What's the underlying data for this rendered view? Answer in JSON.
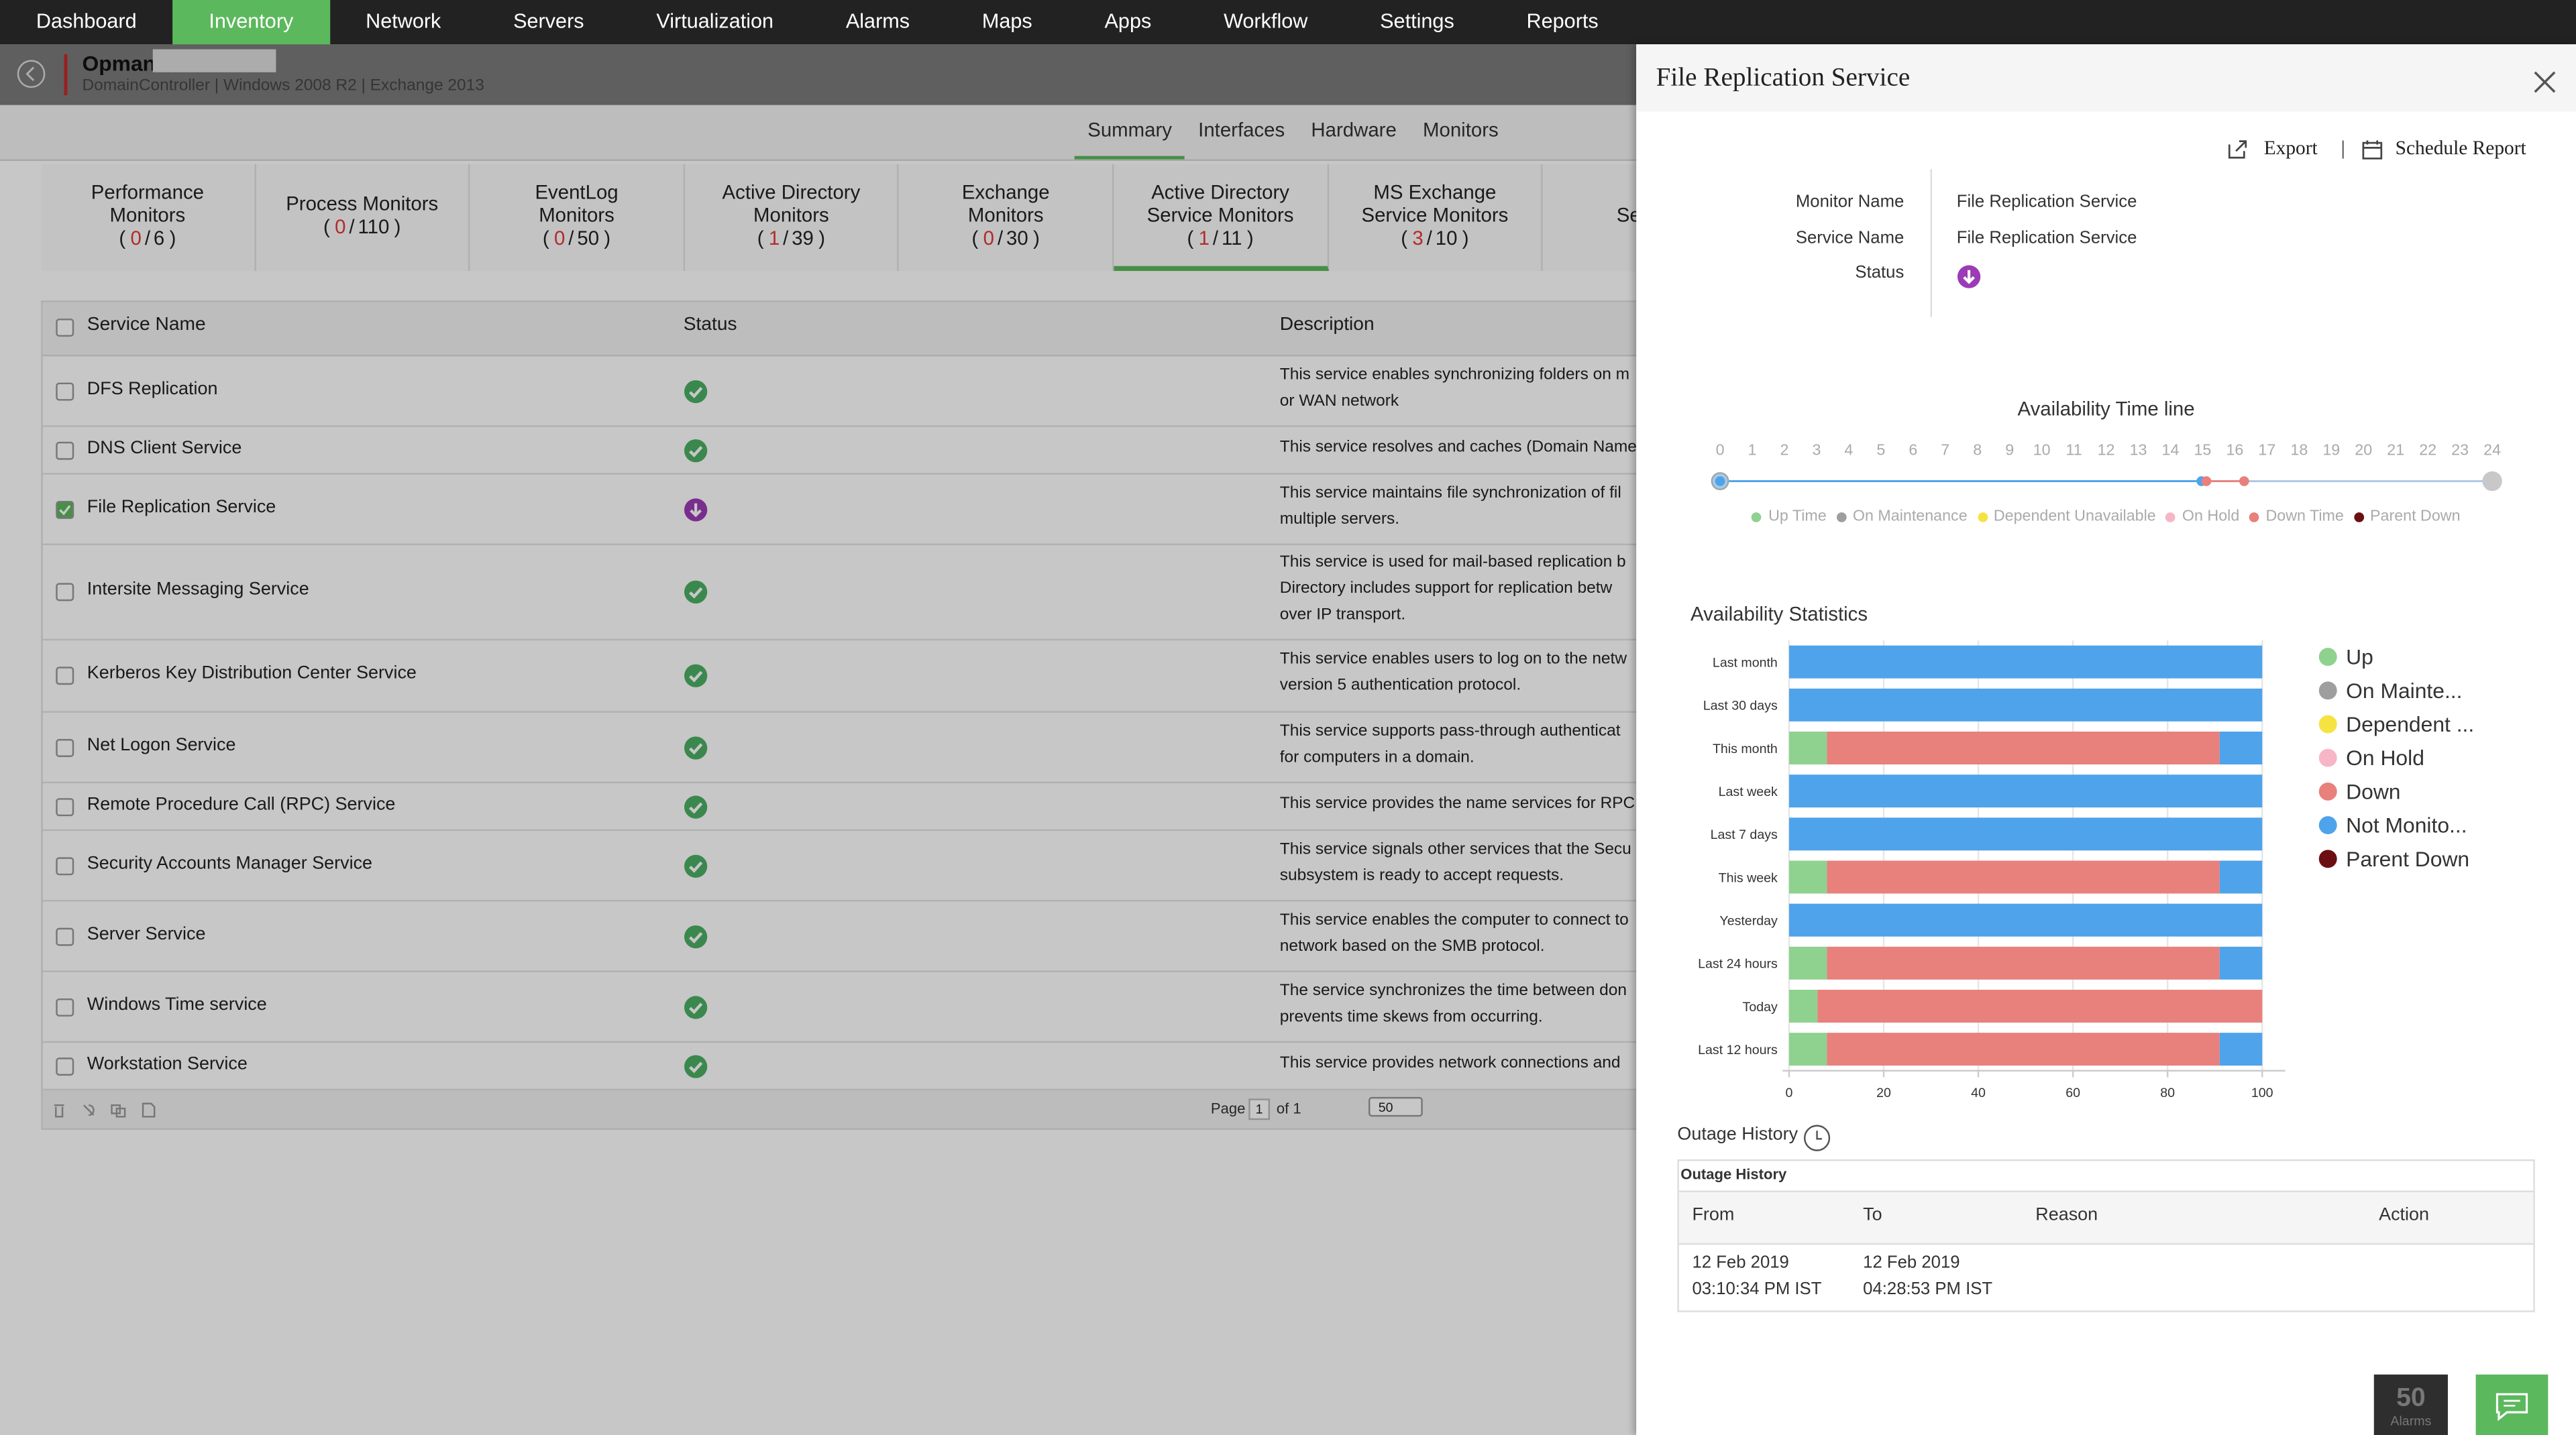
{
  "nav": {
    "items": [
      "Dashboard",
      "Inventory",
      "Network",
      "Servers",
      "Virtualization",
      "Alarms",
      "Maps",
      "Apps",
      "Workflow",
      "Settings",
      "Reports"
    ],
    "active": 1
  },
  "monitor": {
    "name": "Opman",
    "info": "DomainController | Windows 2008 R2  |  Exchange 2013"
  },
  "subtabs": {
    "items": [
      "Summary",
      "Interfaces",
      "Hardware",
      "Monitors"
    ],
    "active": 0
  },
  "monitor_tabs": {
    "punctuation": {
      "open": "(",
      "sep": "/",
      "close": ")"
    },
    "active": 5,
    "items": [
      {
        "label": "Performance Monitors",
        "alerts": 0,
        "total": 6
      },
      {
        "label": "Process Monitors",
        "alerts": 0,
        "total": 110
      },
      {
        "label": "EventLog Monitors",
        "alerts": 0,
        "total": 50
      },
      {
        "label": "Active Directory Monitors",
        "alerts": 1,
        "total": 39
      },
      {
        "label": "Exchange Monitors",
        "alerts": 0,
        "total": 30
      },
      {
        "label": "Active Directory Service Monitors",
        "alerts": 1,
        "total": 11
      },
      {
        "label": "MS Exchange Service Monitors",
        "alerts": 3,
        "total": 10
      },
      {
        "label": "Service"
      }
    ]
  },
  "services_table": {
    "columns": [
      "Service Name",
      "Status",
      "Description"
    ],
    "rows": [
      {
        "name": "DFS Replication",
        "status": "up",
        "checked": false,
        "description": [
          "This service enables synchronizing folders on m",
          "or WAN network"
        ]
      },
      {
        "name": "DNS Client Service",
        "status": "up",
        "checked": false,
        "description": [
          "This service resolves and caches (Domain Name"
        ]
      },
      {
        "name": "File Replication Service",
        "status": "down",
        "checked": true,
        "description": [
          "This service maintains file synchronization of fil",
          "multiple servers."
        ]
      },
      {
        "name": "Intersite Messaging Service",
        "status": "up",
        "checked": false,
        "description": [
          "This service is used for mail-based replication b",
          "Directory includes support for replication betw",
          "over IP transport."
        ]
      },
      {
        "name": "Kerberos Key Distribution Center Service",
        "status": "up",
        "checked": false,
        "description": [
          "This service enables users to log on to the netw",
          "version 5 authentication protocol."
        ]
      },
      {
        "name": "Net Logon Service",
        "status": "up",
        "checked": false,
        "description": [
          "This service supports pass-through authenticat",
          "for computers in a domain."
        ]
      },
      {
        "name": "Remote Procedure Call (RPC) Service",
        "status": "up",
        "checked": false,
        "description": [
          "This service provides the name services for RPC"
        ]
      },
      {
        "name": "Security Accounts Manager Service",
        "status": "up",
        "checked": false,
        "description": [
          "This service signals other services that the Secu",
          "subsystem is ready to accept requests."
        ]
      },
      {
        "name": "Server Service",
        "status": "up",
        "checked": false,
        "description": [
          "This service enables the computer to connect to",
          "network based on the SMB protocol."
        ]
      },
      {
        "name": "Windows Time service",
        "status": "up",
        "checked": false,
        "description": [
          "The service synchronizes the time between don",
          "prevents time skews from occurring."
        ]
      },
      {
        "name": "Workstation Service",
        "status": "up",
        "checked": false,
        "description": [
          "This service provides network connections and"
        ]
      }
    ],
    "pagination": {
      "page_label": "Page",
      "page": 1,
      "of": "of 1",
      "page_size": 50
    }
  },
  "panel": {
    "title": "File Replication Service",
    "actions": {
      "export": "Export",
      "separator": "|",
      "schedule": "Schedule Report"
    },
    "details": [
      {
        "label": "Monitor Name",
        "value": "File Replication Service"
      },
      {
        "label": "Service Name",
        "value": "File Replication Service"
      },
      {
        "label": "Status",
        "status": "down"
      }
    ],
    "availability_timeline": {
      "title": "Availability Time line",
      "ticks": [
        0,
        1,
        2,
        3,
        4,
        5,
        6,
        7,
        8,
        9,
        10,
        11,
        12,
        13,
        14,
        15,
        16,
        17,
        18,
        19,
        20,
        21,
        22,
        23,
        24
      ],
      "legend": [
        {
          "name": "Up Time",
          "color": "#8fd18f"
        },
        {
          "name": "On Maintenance",
          "color": "#9e9e9e"
        },
        {
          "name": "Dependent Unavailable",
          "color": "#f5e342"
        },
        {
          "name": "On Hold",
          "color": "#f7b6c6"
        },
        {
          "name": "Down Time",
          "color": "#e8807c"
        },
        {
          "name": "Parent Down",
          "color": "#6b0f12"
        }
      ]
    },
    "availability_statistics": {
      "type": "bar",
      "orientation": "horizontal",
      "stacked": true,
      "title": "Availability Statistics",
      "categories": [
        "Last month",
        "Last 30 days",
        "This month",
        "Last week",
        "Last 7 days",
        "This week",
        "Yesterday",
        "Last 24 hours",
        "Today",
        "Last 12 hours"
      ],
      "series": [
        {
          "name": "Up",
          "color": "#8fd18f",
          "values": [
            0,
            0,
            8,
            0,
            0,
            8,
            0,
            8,
            6,
            8
          ]
        },
        {
          "name": "On Mainte...",
          "color": "#9e9e9e",
          "values": [
            0,
            0,
            0,
            0,
            0,
            0,
            0,
            0,
            0,
            0
          ]
        },
        {
          "name": "Dependent ...",
          "color": "#f5e342",
          "values": [
            0,
            0,
            0,
            0,
            0,
            0,
            0,
            0,
            0,
            0
          ]
        },
        {
          "name": "On Hold",
          "color": "#f7b6c6",
          "values": [
            0,
            0,
            0,
            0,
            0,
            0,
            0,
            0,
            0,
            0
          ]
        },
        {
          "name": "Down",
          "color": "#e8807c",
          "values": [
            0,
            0,
            83,
            0,
            0,
            83,
            0,
            83,
            94,
            83
          ]
        },
        {
          "name": "Not Monito...",
          "color": "#4fa3ea",
          "values": [
            100,
            100,
            9,
            100,
            100,
            9,
            100,
            9,
            0,
            9
          ]
        },
        {
          "name": "Parent Down",
          "color": "#6b0f12",
          "values": [
            0,
            0,
            0,
            0,
            0,
            0,
            0,
            0,
            0,
            0
          ]
        }
      ],
      "xlim": [
        0,
        100
      ],
      "xticks": [
        0,
        20,
        40,
        60,
        80,
        100
      ],
      "grid": true
    },
    "outage_history": {
      "label": "Outage History",
      "title": "Outage History",
      "columns": [
        "From",
        "To",
        "Reason",
        "Action"
      ],
      "rows": [
        {
          "from": [
            "12 Feb 2019",
            "03:10:34 PM IST"
          ],
          "to": [
            "12 Feb 2019",
            "04:28:53 PM IST"
          ]
        }
      ]
    },
    "alarms": {
      "count": 50,
      "label": "Alarms"
    }
  }
}
